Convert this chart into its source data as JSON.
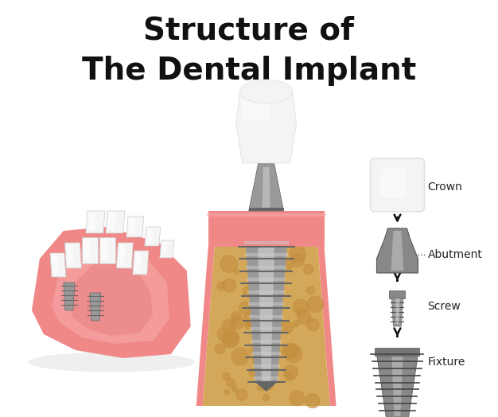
{
  "title_line1": "Structure of",
  "title_line2": "The Dental Implant",
  "title_fontsize": 28,
  "title_color": "#111111",
  "background_color": "#ffffff",
  "labels": [
    "Crown",
    "Abutment",
    "Screw",
    "Fixture"
  ],
  "label_fontsize": 10,
  "label_color": "#222222",
  "gum_color": "#f08888",
  "gum_dark": "#e07070",
  "gum_light": "#f8b0b0",
  "bone_color": "#d4a85a",
  "bone_spot": "#c49040",
  "implant_dark": "#666666",
  "implant_mid": "#999999",
  "implant_light": "#cccccc",
  "crown_white": "#f4f4f4",
  "crown_highlight": "#ffffff",
  "arrow_color": "#111111",
  "dot_color": "#555555"
}
